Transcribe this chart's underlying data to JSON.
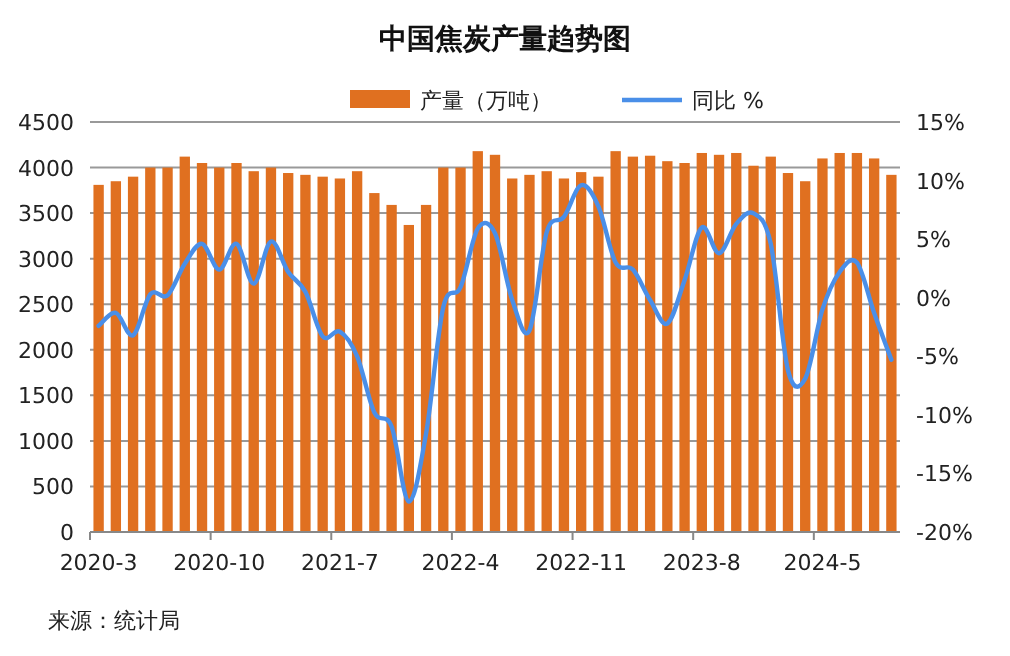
{
  "chart_data": {
    "type": "bar",
    "title": "中国焦炭产量趋势图",
    "categories": [
      "2020-3",
      null,
      null,
      null,
      null,
      null,
      null,
      "2020-10",
      null,
      null,
      null,
      null,
      null,
      null,
      "2021-7",
      null,
      null,
      null,
      null,
      null,
      null,
      "2022-4",
      null,
      null,
      null,
      null,
      null,
      null,
      "2022-11",
      null,
      null,
      null,
      null,
      null,
      null,
      "2023-8",
      null,
      null,
      null,
      null,
      null,
      null,
      "2024-5",
      null,
      null,
      null,
      null
    ],
    "series": [
      {
        "name": "产量（万吨）",
        "color": "#e07020",
        "values": [
          3810,
          3850,
          3900,
          4000,
          4000,
          4120,
          4050,
          4000,
          4050,
          3960,
          4000,
          3940,
          3920,
          3900,
          3880,
          3960,
          3720,
          3590,
          3370,
          3590,
          4000,
          4000,
          4180,
          4140,
          3880,
          3920,
          3960,
          3880,
          3950,
          3900,
          4180,
          4120,
          4130,
          4070,
          4050,
          4160,
          4140,
          4160,
          4020,
          4120,
          3940,
          3850,
          4100,
          4160,
          4160,
          4100,
          3920
        ]
      },
      {
        "name": "同比 %",
        "type": "line",
        "axis": "y2",
        "color": "#4a8fe8",
        "values": [
          -2.4,
          -1.3,
          -3.2,
          0.3,
          0.2,
          2.9,
          4.6,
          2.4,
          4.6,
          1.2,
          4.8,
          2.2,
          0.5,
          -3.3,
          -2.9,
          -5.0,
          -9.8,
          -11.0,
          -17.4,
          -11.6,
          -0.8,
          0.9,
          5.9,
          5.5,
          -0.2,
          -2.8,
          5.6,
          6.9,
          9.6,
          7.8,
          3.0,
          2.4,
          -0.2,
          -2.2,
          1.5,
          6.0,
          3.8,
          6.3,
          7.2,
          4.6,
          -6.2,
          -6.9,
          -1.0,
          2.2,
          3.0,
          -1.3,
          -5.3
        ]
      }
    ],
    "ylim": [
      0,
      4500
    ],
    "yticks": [
      0,
      500,
      1000,
      1500,
      2000,
      2500,
      3000,
      3500,
      4000,
      4500
    ],
    "y2lim": [
      -20,
      15
    ],
    "y2ticks": [
      {
        "value": -20,
        "label": "-20%"
      },
      {
        "value": -15,
        "label": "-15%"
      },
      {
        "value": -10,
        "label": "-10%"
      },
      {
        "value": -5,
        "label": "-5%"
      },
      {
        "value": 0,
        "label": "0%"
      },
      {
        "value": 5,
        "label": "5%"
      },
      {
        "value": 10,
        "label": "10%"
      },
      {
        "value": 15,
        "label": "15%"
      }
    ],
    "grid": "y",
    "legend": "top",
    "annotations": [
      "来源：统计局"
    ]
  }
}
